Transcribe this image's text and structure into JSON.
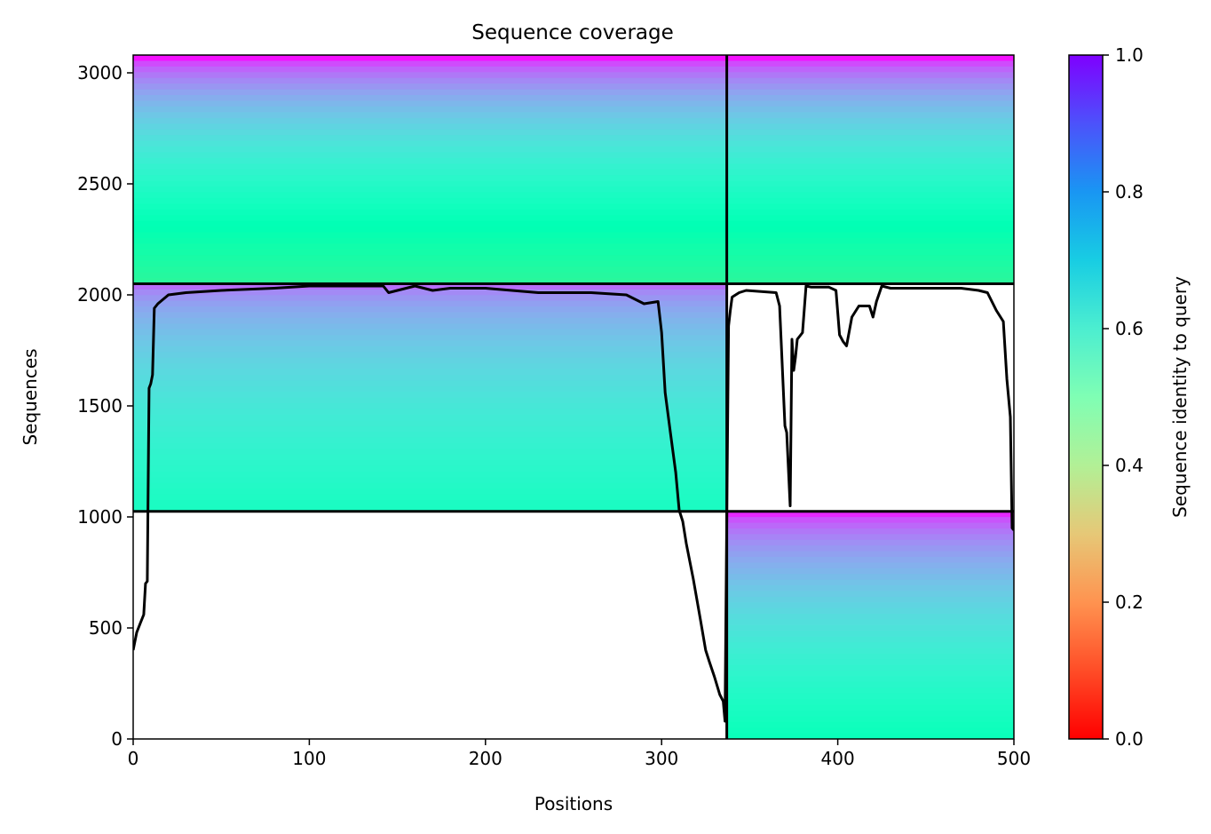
{
  "chart_data": {
    "type": "heatmap",
    "title": "Sequence coverage",
    "xlabel": "Positions",
    "ylabel": "Sequences",
    "xlim": [
      0,
      500
    ],
    "ylim": [
      0,
      3080
    ],
    "xticks": [
      "0",
      "100",
      "200",
      "300",
      "400",
      "500"
    ],
    "yticks": [
      "0",
      "500",
      "1000",
      "1500",
      "2000",
      "2500",
      "3000"
    ],
    "colorbar": {
      "label": "Sequence identity to query",
      "range": [
        0.0,
        1.0
      ],
      "ticks": [
        "0.0",
        "0.2",
        "0.4",
        "0.6",
        "0.8",
        "1.0"
      ],
      "colormap": "rainbow_r"
    },
    "chain_boundaries": {
      "positions": [
        337
      ],
      "sequences": [
        1025,
        2050
      ]
    },
    "blocks": [
      {
        "name": "chain-1-only",
        "x": [
          0,
          337
        ],
        "y": [
          1025,
          2050
        ],
        "identity_top": 0.86,
        "identity_bottom": 0.55
      },
      {
        "name": "chain-2-only",
        "x": [
          337,
          500
        ],
        "y": [
          0,
          1025
        ],
        "identity_top": 0.95,
        "identity_bottom": 0.52
      },
      {
        "name": "paired-chain-1",
        "x": [
          0,
          337
        ],
        "y": [
          2050,
          3080
        ],
        "identity_top": 0.98,
        "identity_bottom": 0.42
      },
      {
        "name": "paired-chain-2",
        "x": [
          337,
          500
        ],
        "y": [
          2050,
          3080
        ],
        "identity_top": 0.98,
        "identity_bottom": 0.42
      }
    ],
    "coverage_line": {
      "x": [
        0,
        2,
        4,
        6,
        7,
        8,
        9,
        10,
        11,
        12,
        14,
        20,
        30,
        50,
        80,
        100,
        130,
        142,
        145,
        160,
        170,
        180,
        200,
        230,
        260,
        280,
        290,
        298,
        300,
        302,
        305,
        308,
        310,
        312,
        314,
        318,
        322,
        325,
        327,
        330,
        333,
        335,
        336,
        337,
        338,
        339,
        340,
        344,
        348,
        365,
        367,
        370,
        371,
        373,
        374,
        375,
        376,
        377,
        380,
        382,
        385,
        395,
        399,
        401,
        403,
        405,
        408,
        412,
        418,
        420,
        422,
        425,
        430,
        450,
        470,
        480,
        485,
        490,
        494,
        496,
        498,
        499,
        500
      ],
      "y": [
        400,
        480,
        520,
        560,
        700,
        710,
        1580,
        1600,
        1640,
        1940,
        1960,
        2000,
        2010,
        2020,
        2030,
        2040,
        2040,
        2040,
        2010,
        2040,
        2020,
        2030,
        2030,
        2010,
        2010,
        2000,
        1960,
        1970,
        1830,
        1560,
        1380,
        1200,
        1030,
        980,
        880,
        720,
        540,
        400,
        350,
        280,
        200,
        170,
        80,
        1000,
        1860,
        1930,
        1990,
        2010,
        2020,
        2010,
        1950,
        1410,
        1380,
        1050,
        1800,
        1660,
        1720,
        1800,
        1830,
        2040,
        2035,
        2035,
        2020,
        1820,
        1790,
        1770,
        1900,
        1950,
        1950,
        1900,
        1970,
        2040,
        2030,
        2030,
        2030,
        2020,
        2010,
        1930,
        1880,
        1620,
        1450,
        950,
        940
      ]
    }
  }
}
